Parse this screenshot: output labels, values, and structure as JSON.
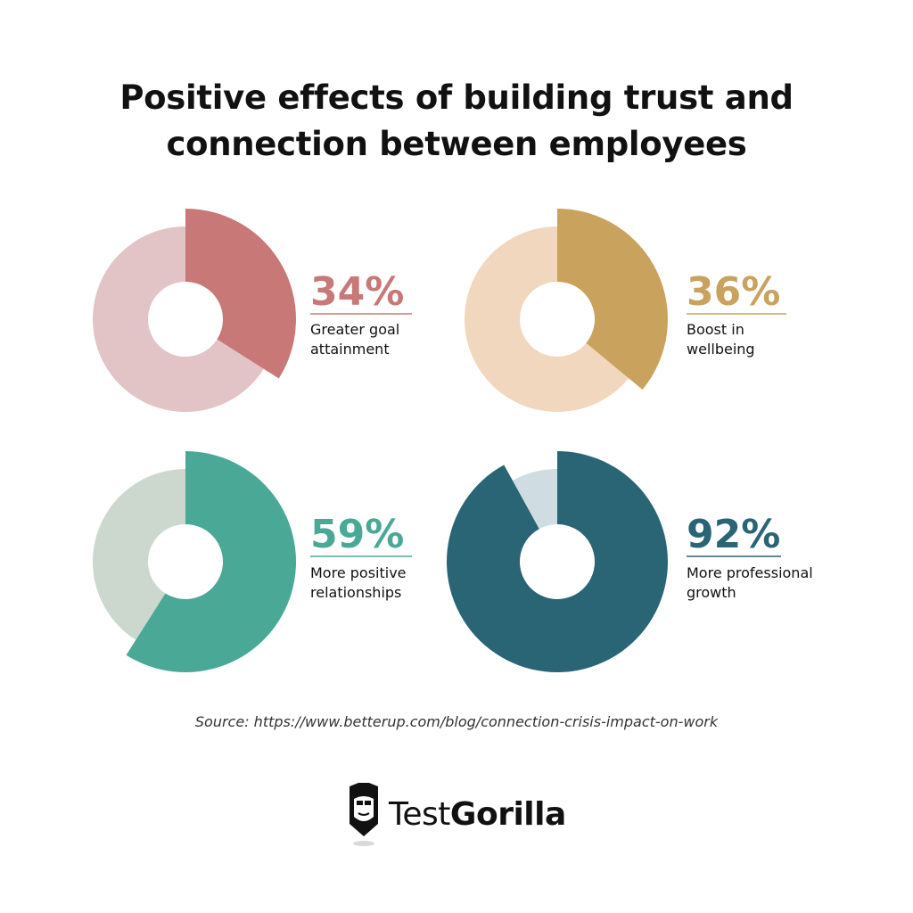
{
  "title_lines": [
    "Positive effects of building trust and",
    "connection between employees"
  ],
  "source": "Source: https://www.betterup.com/blog/connection-crisis-impact-on-work",
  "brand": {
    "part1": "Test",
    "part2": "Gorilla"
  },
  "chart_data": [
    {
      "type": "pie",
      "value": 34,
      "label": "34%",
      "caption_lines": [
        "Greater goal",
        "attainment"
      ],
      "accent": "#c87876",
      "rest": "#e2c3c6"
    },
    {
      "type": "pie",
      "value": 36,
      "label": "36%",
      "caption_lines": [
        "Boost in",
        "wellbeing"
      ],
      "accent": "#c9a35e",
      "rest": "#f0d7bd"
    },
    {
      "type": "pie",
      "value": 59,
      "label": "59%",
      "caption_lines": [
        "More positive",
        "relationships"
      ],
      "accent": "#49a996",
      "rest": "#ccd8cd"
    },
    {
      "type": "pie",
      "value": 92,
      "label": "92%",
      "caption_lines": [
        "More professional",
        "growth"
      ],
      "accent": "#2a6576",
      "rest": "#cfdde2"
    }
  ]
}
